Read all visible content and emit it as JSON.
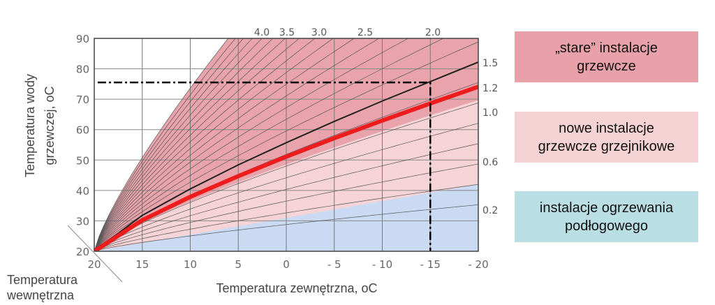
{
  "chart_data": {
    "type": "line",
    "xlabel": "Temperatura zewnętrzna, oC",
    "ylabel_line1": "Temperatura wody",
    "ylabel_line2": "grzewczej, oC",
    "diag_label_line1": "Temperatura",
    "diag_label_line2": "wewnętrzna",
    "x_ticks": [
      "20",
      "15",
      "10",
      "5",
      "0",
      "- 5",
      "- 10",
      "- 15",
      "- 20"
    ],
    "x_values": [
      20,
      15,
      10,
      5,
      0,
      -5,
      -10,
      -15,
      -20
    ],
    "xlim": [
      20,
      -20
    ],
    "y_ticks": [
      "20",
      "30",
      "40",
      "50",
      "60",
      "70",
      "80",
      "90"
    ],
    "ylim": [
      20,
      90
    ],
    "grid": true,
    "top_curve_labels": [
      "4.0",
      "3.5",
      "3.0",
      "2.5",
      "2.0"
    ],
    "right_curve_labels": [
      "1.5",
      "1.2",
      "1.0",
      "0.6",
      "0.2"
    ],
    "curve_slopes": [
      0.2,
      0.4,
      0.6,
      0.8,
      1.0,
      1.2,
      1.4,
      1.6,
      1.8,
      2.0,
      2.2,
      2.4,
      2.6,
      2.8,
      3.0,
      3.2,
      3.4,
      3.6,
      3.8,
      4.0,
      4.2,
      4.4,
      4.6
    ],
    "series": [
      {
        "name": "1.5",
        "color": "#222222",
        "x": [
          20,
          15,
          10,
          5,
          0,
          -5,
          -10,
          -15,
          -20
        ],
        "y": [
          20,
          31.8,
          40.5,
          48.4,
          55.7,
          62.7,
          69.4,
          75.8,
          82.2
        ]
      },
      {
        "name": "1.2",
        "color": "#ee1c1c",
        "x": [
          20,
          15,
          10,
          5,
          0,
          -5,
          -10,
          -15,
          -20
        ],
        "y": [
          20,
          30.2,
          37.9,
          44.7,
          51.1,
          57.2,
          63.0,
          68.6,
          74.1
        ]
      }
    ],
    "design_point": {
      "outdoor_temp": -15,
      "water_temp": 75.5
    },
    "regions": [
      {
        "name": "stare",
        "color": "#e9a3ab"
      },
      {
        "name": "nowe",
        "color": "#f6d3d6"
      },
      {
        "name": "podlogowe",
        "color": "#c9daf2",
        "upper_boundary": [
          20,
          42
        ]
      }
    ]
  },
  "legend": [
    {
      "line1": "„stare” instalacje",
      "line2": "grzewcze",
      "color": "#e8a1a9"
    },
    {
      "line1": "nowe instalacje",
      "line2": "grzewcze grzejnikowe",
      "color": "#f5d3d5"
    },
    {
      "line1": "instalacje ogrzewania",
      "line2": "podłogowego",
      "color": "#b9dee3"
    }
  ]
}
